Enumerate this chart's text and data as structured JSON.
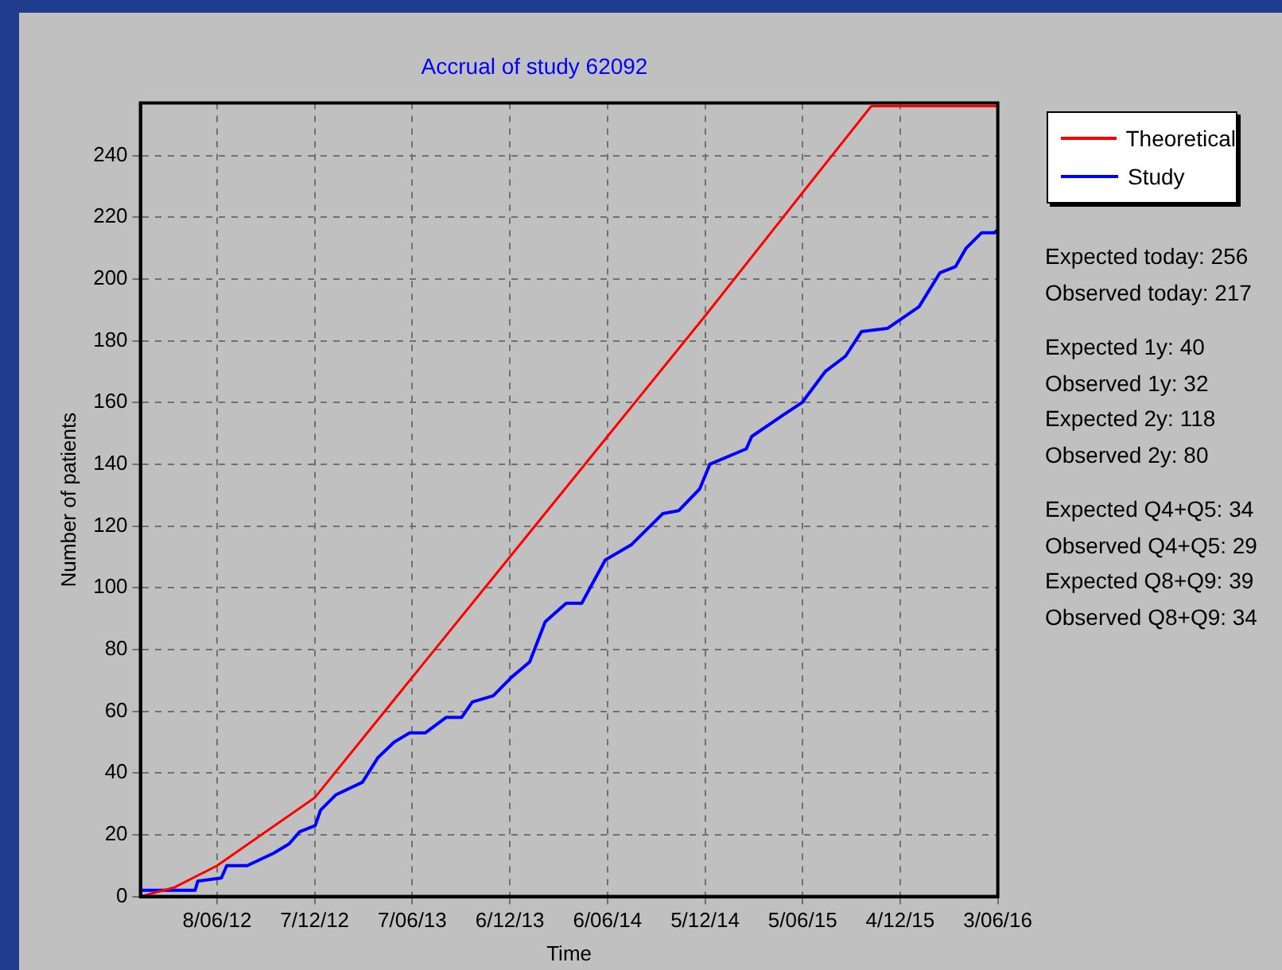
{
  "chart_data": {
    "type": "line",
    "title": "Accrual of study 62092",
    "xlabel": "Time",
    "ylabel": "Number of patients",
    "xlim": [
      "2012-01-17",
      "2016-06-03"
    ],
    "xticks": [
      {
        "value": "2012-06-08",
        "label": "8/06/12"
      },
      {
        "value": "2012-12-07",
        "label": "7/12/12"
      },
      {
        "value": "2013-06-07",
        "label": "7/06/13"
      },
      {
        "value": "2013-12-06",
        "label": "6/12/13"
      },
      {
        "value": "2014-06-06",
        "label": "6/06/14"
      },
      {
        "value": "2014-12-05",
        "label": "5/12/14"
      },
      {
        "value": "2015-06-05",
        "label": "5/06/15"
      },
      {
        "value": "2015-12-04",
        "label": "4/12/15"
      },
      {
        "value": "2016-06-03",
        "label": "3/06/16"
      }
    ],
    "ylim": [
      0,
      257
    ],
    "yticks": [
      0,
      20,
      40,
      60,
      80,
      100,
      120,
      140,
      160,
      180,
      200,
      220,
      240
    ],
    "grid": true,
    "legend": "top right",
    "marker": "none",
    "series": [
      {
        "name": "Theoretical",
        "color": "#ff0000",
        "x": [
          "2012-01-17",
          "2012-03-21",
          "2012-06-08",
          "2012-09-07",
          "2012-12-07",
          "2013-06-07",
          "2013-12-06",
          "2014-06-06",
          "2014-12-05",
          "2015-06-05",
          "2015-10-11",
          "2016-06-03"
        ],
        "values": [
          0,
          3,
          10,
          21,
          32,
          71,
          110,
          149,
          188,
          228,
          256,
          256
        ]
      },
      {
        "name": "Study",
        "color": "#0000ff",
        "x": [
          "2012-01-17",
          "2012-04-28",
          "2012-05-03",
          "2012-06-16",
          "2012-06-26",
          "2012-08-03",
          "2012-09-21",
          "2012-10-20",
          "2012-11-09",
          "2012-12-08",
          "2012-12-18",
          "2013-01-16",
          "2013-03-06",
          "2013-04-04",
          "2013-05-04",
          "2013-06-02",
          "2013-07-01",
          "2013-08-09",
          "2013-09-07",
          "2013-09-27",
          "2013-11-05",
          "2013-12-09",
          "2014-01-12",
          "2014-02-10",
          "2014-03-21",
          "2014-04-19",
          "2014-06-02",
          "2014-07-21",
          "2014-09-17",
          "2014-10-17",
          "2014-11-25",
          "2014-12-14",
          "2015-02-20",
          "2015-03-02",
          "2015-04-30",
          "2015-06-04",
          "2015-07-17",
          "2015-08-24",
          "2015-09-23",
          "2015-11-10",
          "2016-01-08",
          "2016-02-16",
          "2016-03-16",
          "2016-04-05",
          "2016-05-04",
          "2016-05-28",
          "2016-06-03"
        ],
        "values": [
          2,
          2,
          5,
          6,
          10,
          10,
          14,
          17,
          21,
          23,
          28,
          33,
          37,
          45,
          50,
          53,
          53,
          58,
          58,
          63,
          65,
          71,
          76,
          89,
          95,
          95,
          109,
          114,
          124,
          125,
          132,
          140,
          145,
          149,
          156,
          160,
          170,
          175,
          183,
          184,
          191,
          202,
          204,
          210,
          215,
          215,
          216
        ]
      }
    ],
    "annotations": [
      "Expected today: 256",
      "Observed today: 217",
      "Expected 1y: 40",
      "Observed 1y: 32",
      "Expected 2y: 118",
      "Observed 2y: 80",
      "Expected Q4+Q5: 34",
      "Observed Q4+Q5: 29",
      "Expected Q8+Q9: 39",
      "Observed Q8+Q9: 34"
    ]
  }
}
